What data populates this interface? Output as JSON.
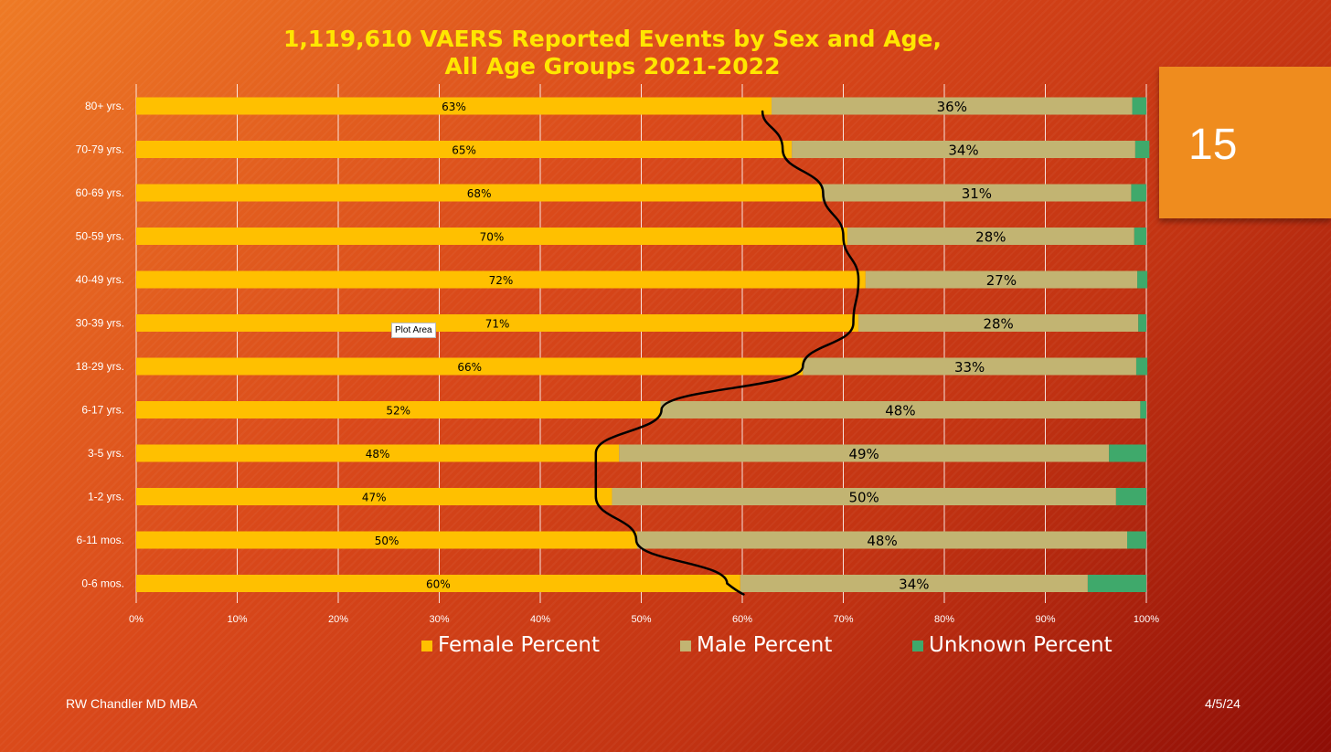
{
  "slide": {
    "number": "15",
    "footer_author": "RW Chandler MD MBA",
    "footer_date": "4/5/24",
    "tooltip": "Plot Area"
  },
  "colors": {
    "female": "#ffc000",
    "male": "#c2b472",
    "unknown": "#3fa96b",
    "title": "#ffe600",
    "trend_line": "#000000"
  },
  "chart_data": {
    "type": "bar",
    "orientation": "horizontal",
    "stacked": "100%",
    "title": "1,119,610 VAERS Reported Events by Sex and Age,",
    "subtitle": "All Age Groups 2021-2022",
    "categories": [
      "80+ yrs.",
      "70-79 yrs.",
      "60-69 yrs.",
      "50-59 yrs.",
      "40-49 yrs.",
      "30-39 yrs.",
      "18-29 yrs.",
      "6-17 yrs.",
      "3-5 yrs.",
      "1-2 yrs.",
      "6-11 mos.",
      "0-6 mos."
    ],
    "series": [
      {
        "name": "Female Percent",
        "values": [
          62.9,
          64.9,
          67.9,
          70.4,
          72.2,
          71.5,
          66.0,
          51.9,
          47.8,
          47.1,
          49.6,
          59.8
        ],
        "labels": [
          "63%",
          "65%",
          "68%",
          "70%",
          "72%",
          "71%",
          "66%",
          "52%",
          "48%",
          "47%",
          "50%",
          "60%"
        ]
      },
      {
        "name": "Male Percent",
        "values": [
          35.7,
          34.0,
          30.6,
          28.4,
          26.9,
          27.7,
          33.0,
          47.5,
          48.5,
          49.9,
          48.5,
          34.4
        ],
        "labels": [
          "36%",
          "34%",
          "31%",
          "28%",
          "27%",
          "28%",
          "33%",
          "48%",
          "49%",
          "50%",
          "48%",
          "34%"
        ]
      },
      {
        "name": "Unknown Percent",
        "values": [
          1.4,
          1.4,
          1.5,
          1.2,
          1.0,
          0.8,
          1.1,
          0.6,
          3.7,
          3.0,
          1.9,
          5.8
        ]
      }
    ],
    "x_ticks": [
      "0%",
      "10%",
      "20%",
      "30%",
      "40%",
      "50%",
      "60%",
      "70%",
      "80%",
      "90%",
      "100%"
    ],
    "xlim": [
      0,
      100
    ],
    "grid": true,
    "legend_position": "bottom",
    "trend_line_female_percent": [
      62.0,
      64.0,
      68.0,
      70.0,
      71.5,
      71.0,
      66.0,
      52.0,
      45.5,
      45.5,
      49.5,
      58.5
    ]
  }
}
